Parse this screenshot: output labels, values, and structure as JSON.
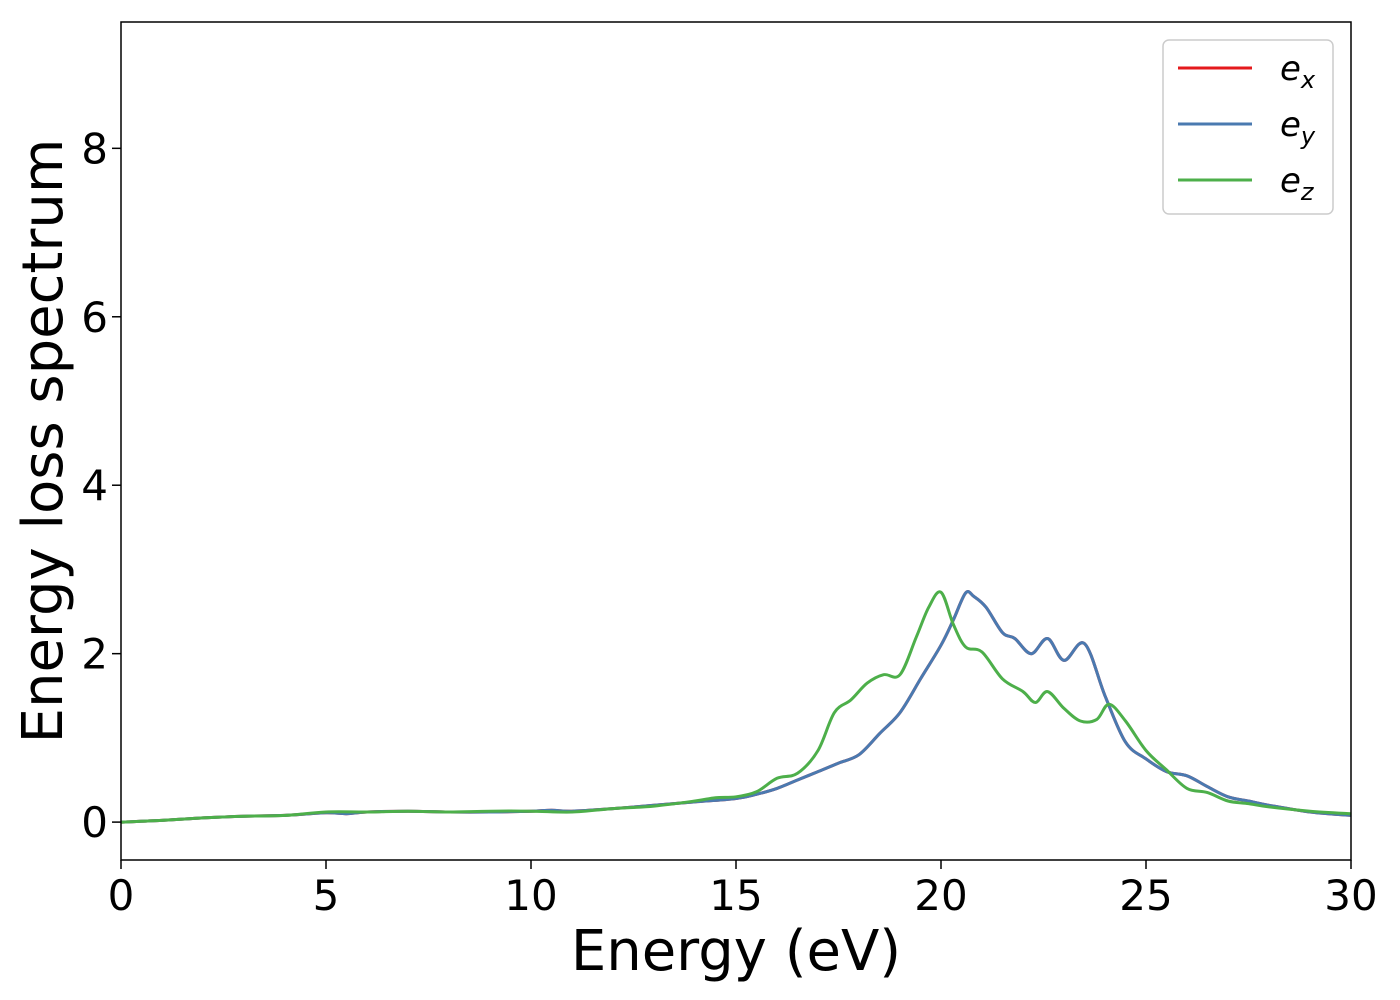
{
  "chart_data": {
    "type": "line",
    "title": "",
    "xlabel": "Energy (eV)",
    "ylabel": "Energy loss spectrum",
    "xlim": [
      0,
      30
    ],
    "ylim": [
      -0.45,
      9.5
    ],
    "xticks": [
      0,
      5,
      10,
      15,
      20,
      25,
      30
    ],
    "yticks": [
      0,
      2,
      4,
      6,
      8
    ],
    "grid": false,
    "legend_position": "top-right",
    "series": [
      {
        "name": "e_x",
        "label_base": "e",
        "label_sub": "x",
        "color": "#e41a1c",
        "x": [
          0,
          1,
          2,
          3,
          4,
          5,
          5.5,
          6,
          7,
          8,
          9,
          10,
          10.5,
          11,
          12,
          13,
          14,
          15,
          15.5,
          16,
          16.5,
          17,
          17.5,
          18,
          18.5,
          19,
          19.5,
          20,
          20.3,
          20.6,
          20.8,
          21.1,
          21.5,
          21.8,
          22.2,
          22.6,
          23,
          23.5,
          24,
          24.5,
          25,
          25.5,
          26,
          26.5,
          27,
          27.5,
          28,
          29,
          30
        ],
        "y": [
          0,
          0.02,
          0.05,
          0.07,
          0.08,
          0.11,
          0.1,
          0.12,
          0.13,
          0.12,
          0.12,
          0.13,
          0.14,
          0.13,
          0.16,
          0.2,
          0.24,
          0.28,
          0.33,
          0.4,
          0.5,
          0.6,
          0.7,
          0.8,
          1.05,
          1.3,
          1.7,
          2.1,
          2.4,
          2.72,
          2.68,
          2.55,
          2.25,
          2.18,
          2.0,
          2.18,
          1.92,
          2.12,
          1.5,
          0.95,
          0.75,
          0.6,
          0.55,
          0.42,
          0.3,
          0.25,
          0.2,
          0.12,
          0.08
        ]
      },
      {
        "name": "e_y",
        "label_base": "e",
        "label_sub": "y",
        "color": "#4a7ab0",
        "x": [
          0,
          1,
          2,
          3,
          4,
          5,
          5.5,
          6,
          7,
          8,
          9,
          10,
          10.5,
          11,
          12,
          13,
          14,
          15,
          15.5,
          16,
          16.5,
          17,
          17.5,
          18,
          18.5,
          19,
          19.5,
          20,
          20.3,
          20.6,
          20.8,
          21.1,
          21.5,
          21.8,
          22.2,
          22.6,
          23,
          23.5,
          24,
          24.5,
          25,
          25.5,
          26,
          26.5,
          27,
          27.5,
          28,
          29,
          30
        ],
        "y": [
          0,
          0.02,
          0.05,
          0.07,
          0.08,
          0.11,
          0.1,
          0.12,
          0.13,
          0.12,
          0.12,
          0.13,
          0.14,
          0.13,
          0.16,
          0.2,
          0.24,
          0.28,
          0.33,
          0.4,
          0.5,
          0.6,
          0.7,
          0.8,
          1.05,
          1.3,
          1.7,
          2.1,
          2.4,
          2.72,
          2.68,
          2.55,
          2.25,
          2.18,
          2.0,
          2.18,
          1.92,
          2.12,
          1.5,
          0.95,
          0.75,
          0.6,
          0.55,
          0.42,
          0.3,
          0.25,
          0.2,
          0.12,
          0.08
        ]
      },
      {
        "name": "e_z",
        "label_base": "e",
        "label_sub": "z",
        "color": "#4daf4a",
        "x": [
          0,
          1,
          2,
          3,
          4,
          5,
          6,
          7,
          8,
          9,
          10,
          11,
          12,
          13,
          14,
          14.5,
          15,
          15.5,
          16,
          16.5,
          17,
          17.4,
          17.8,
          18.2,
          18.6,
          19,
          19.4,
          19.7,
          20,
          20.3,
          20.6,
          21,
          21.5,
          22,
          22.3,
          22.6,
          23,
          23.4,
          23.8,
          24.1,
          24.5,
          25,
          25.5,
          26,
          26.5,
          27,
          27.5,
          28,
          29,
          30
        ],
        "y": [
          0,
          0.02,
          0.05,
          0.07,
          0.08,
          0.12,
          0.12,
          0.13,
          0.12,
          0.13,
          0.13,
          0.12,
          0.16,
          0.19,
          0.25,
          0.29,
          0.3,
          0.36,
          0.52,
          0.58,
          0.85,
          1.3,
          1.45,
          1.65,
          1.75,
          1.75,
          2.2,
          2.55,
          2.73,
          2.35,
          2.08,
          2.02,
          1.7,
          1.55,
          1.42,
          1.55,
          1.35,
          1.2,
          1.22,
          1.4,
          1.2,
          0.85,
          0.62,
          0.4,
          0.35,
          0.25,
          0.22,
          0.18,
          0.13,
          0.1
        ]
      }
    ]
  }
}
